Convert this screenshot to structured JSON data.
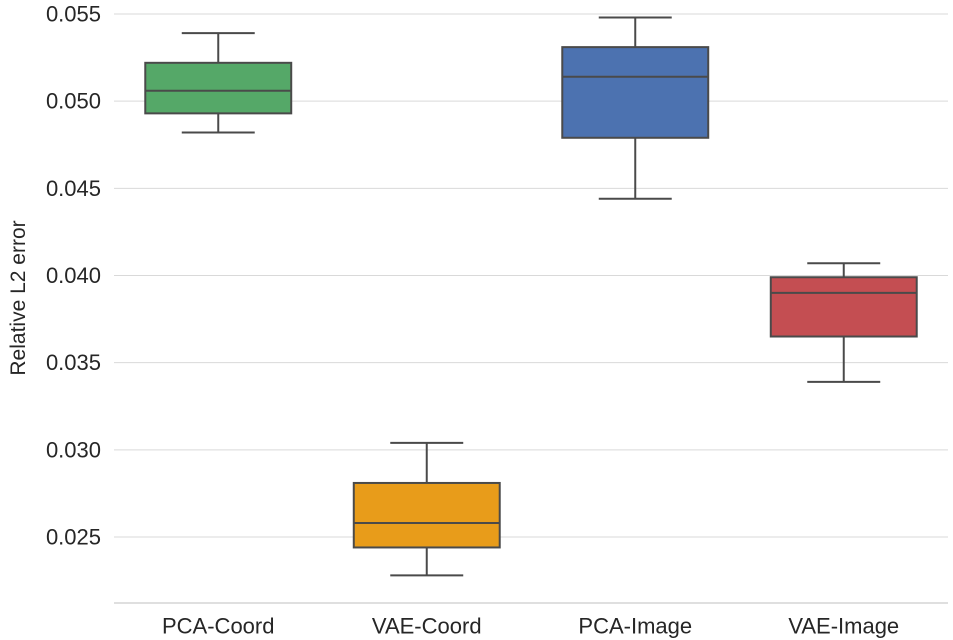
{
  "chart_data": {
    "type": "box",
    "title": "",
    "xlabel": "",
    "ylabel": "Relative L2 error",
    "ylim": [
      0.0214,
      0.0555
    ],
    "yticks": [
      "0.025",
      "0.030",
      "0.035",
      "0.040",
      "0.045",
      "0.050",
      "0.055"
    ],
    "grid": "horizontal",
    "categories": [
      "PCA-Coord",
      "VAE-Coord",
      "PCA-Image",
      "VAE-Image"
    ],
    "boxes": [
      {
        "category": "PCA-Coord",
        "whisker_low": 0.0482,
        "q1": 0.0493,
        "median": 0.0506,
        "q3": 0.0522,
        "whisker_high": 0.0539,
        "color": "#55a868"
      },
      {
        "category": "VAE-Coord",
        "whisker_low": 0.0228,
        "q1": 0.0244,
        "median": 0.0258,
        "q3": 0.0281,
        "whisker_high": 0.0304,
        "color": "#e89c1a"
      },
      {
        "category": "PCA-Image",
        "whisker_low": 0.0444,
        "q1": 0.0479,
        "median": 0.0514,
        "q3": 0.0531,
        "whisker_high": 0.0548,
        "color": "#4c72b0"
      },
      {
        "category": "VAE-Image",
        "whisker_low": 0.0339,
        "q1": 0.0365,
        "median": 0.039,
        "q3": 0.0399,
        "whisker_high": 0.0407,
        "color": "#c44e52"
      }
    ]
  }
}
